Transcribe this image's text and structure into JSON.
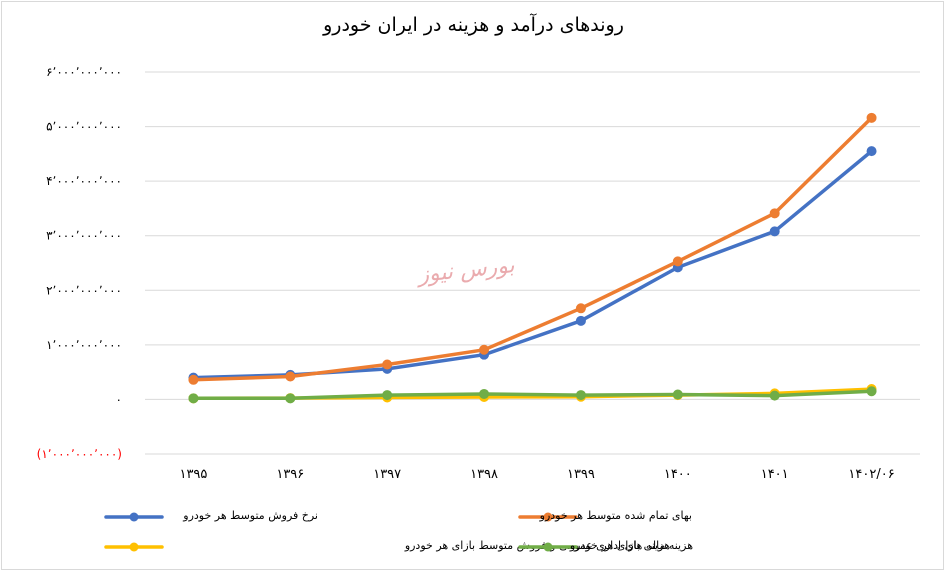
{
  "chart_data": {
    "type": "line",
    "title": "روندهای درآمد و هزینه در ایران خودرو",
    "categories": [
      "۱۳۹۵",
      "۱۳۹۶",
      "۱۳۹۷",
      "۱۳۹۸",
      "۱۳۹۹",
      "۱۴۰۰",
      "۱۴۰۱",
      "۱۴۰۲/۰۶"
    ],
    "ylim": [
      -1000000000,
      6000000000
    ],
    "yticks": [
      {
        "value": 6000000000,
        "label": "۶٬۰۰۰٬۰۰۰٬۰۰۰",
        "color": "#000000"
      },
      {
        "value": 5000000000,
        "label": "۵٬۰۰۰٬۰۰۰٬۰۰۰",
        "color": "#000000"
      },
      {
        "value": 4000000000,
        "label": "۴٬۰۰۰٬۰۰۰٬۰۰۰",
        "color": "#000000"
      },
      {
        "value": 3000000000,
        "label": "۳٬۰۰۰٬۰۰۰٬۰۰۰",
        "color": "#000000"
      },
      {
        "value": 2000000000,
        "label": "۲٬۰۰۰٬۰۰۰٬۰۰۰",
        "color": "#000000"
      },
      {
        "value": 1000000000,
        "label": "۱٬۰۰۰٬۰۰۰٬۰۰۰",
        "color": "#000000"
      },
      {
        "value": 0,
        "label": "۰",
        "color": "#000000"
      },
      {
        "value": -1000000000,
        "label": "(۱٬۰۰۰٬۰۰۰٬۰۰۰)",
        "color": "#ff0000"
      }
    ],
    "grid": true,
    "legend_position": "bottom",
    "series": [
      {
        "name": "نرخ فروش متوسط هر خودرو",
        "color": "#4472c4",
        "values": [
          400000000,
          450000000,
          560000000,
          820000000,
          1440000000,
          2420000000,
          3080000000,
          4550000000
        ]
      },
      {
        "name": "بهای تمام شده متوسط هر خودرو",
        "color": "#ed7d31",
        "values": [
          360000000,
          420000000,
          640000000,
          910000000,
          1670000000,
          2530000000,
          3410000000,
          5160000000
        ]
      },
      {
        "name": "هزینه های اداری عمومی و فروش متوسط بازای هر خودرو",
        "color": "#ffc000",
        "values": [
          20000000,
          25000000,
          35000000,
          45000000,
          50000000,
          80000000,
          110000000,
          190000000
        ]
      },
      {
        "name": "هزینه مالی بازای هر خودرو",
        "color": "#70ad47",
        "values": [
          20000000,
          20000000,
          80000000,
          100000000,
          80000000,
          90000000,
          70000000,
          150000000
        ]
      }
    ]
  },
  "watermark": "بورس نیوز"
}
